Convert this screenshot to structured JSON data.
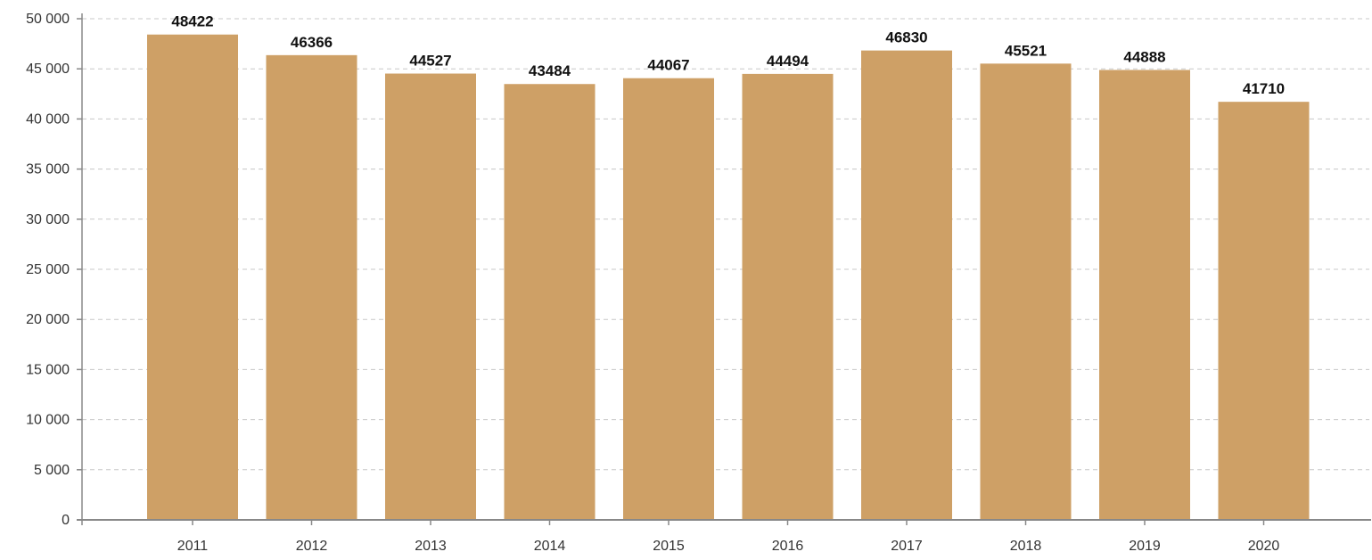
{
  "chart_data": {
    "type": "bar",
    "title": "",
    "xlabel": "",
    "ylabel": "",
    "categories": [
      "2011",
      "2012",
      "2013",
      "2014",
      "2015",
      "2016",
      "2017",
      "2018",
      "2019",
      "2020"
    ],
    "values": [
      48422,
      46366,
      44527,
      43484,
      44067,
      44494,
      46830,
      45521,
      44888,
      41710
    ],
    "value_labels": [
      "48422",
      "46366",
      "44527",
      "43484",
      "44067",
      "44494",
      "46830",
      "45521",
      "44888",
      "41710"
    ],
    "ylim": [
      0,
      50000
    ],
    "yticks": [
      0,
      5000,
      10000,
      15000,
      20000,
      25000,
      30000,
      35000,
      40000,
      45000,
      50000
    ],
    "ytick_labels": [
      "0",
      "5 000",
      "10 000",
      "15 000",
      "20 000",
      "25 000",
      "30 000",
      "35 000",
      "40 000",
      "45 000",
      "50 000"
    ],
    "grid": true,
    "grid_style": "dashed",
    "legend": "none",
    "colors": {
      "bar": "#CEA066",
      "axis": "#888888",
      "grid": "#C8C8C8",
      "text": "#333333"
    }
  }
}
